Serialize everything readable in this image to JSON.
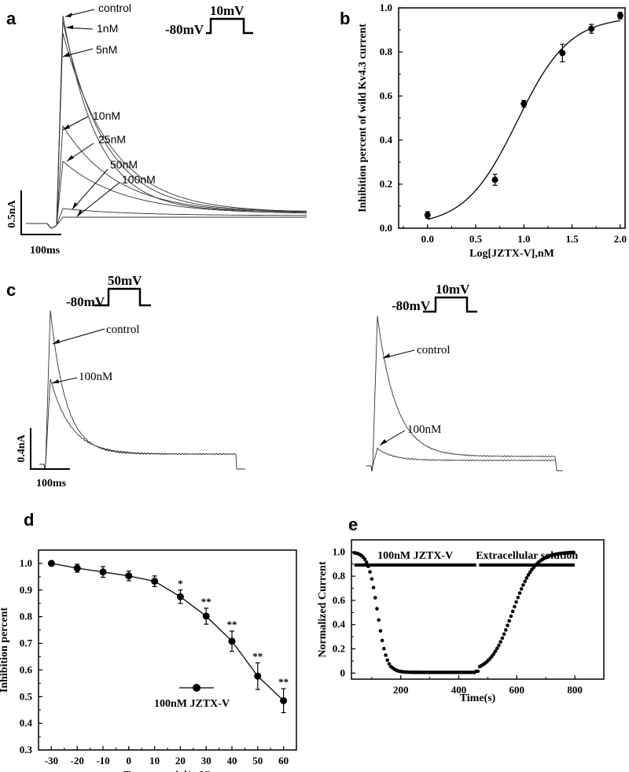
{
  "panels": {
    "a": {
      "label": "a",
      "protocol": {
        "hold": "-80mV",
        "step": "10mV"
      },
      "scale": {
        "current": "0.5nA",
        "time": "100ms"
      },
      "traces": [
        "control",
        "1nM",
        "5nM",
        "10nM",
        "25nM",
        "50nM",
        "100nM"
      ]
    },
    "c": {
      "label": "c",
      "left": {
        "protocol": {
          "hold": "-80mV",
          "step": "50mV"
        },
        "labels": [
          "control",
          "100nM"
        ]
      },
      "right": {
        "protocol": {
          "hold": "-80mV",
          "step": "10mV"
        },
        "labels": [
          "control",
          "100nM"
        ]
      },
      "scale": {
        "current": "0.4nA",
        "time": "100ms"
      }
    }
  },
  "chart_data": [
    {
      "panel": "b",
      "type": "scatter",
      "xlabel": "Log[JZTX-V],nM",
      "ylabel": "Inhibition percent of wild Kv4.3 current",
      "xlim": [
        -0.3,
        2.05
      ],
      "ylim": [
        0.0,
        1.0
      ],
      "xticks": [
        "0.0",
        "0.5",
        "1.0",
        "1.5",
        "2.0"
      ],
      "yticks": [
        "0.0",
        "0.2",
        "0.4",
        "0.6",
        "0.8",
        "1.0"
      ],
      "points": [
        {
          "x": 0.0,
          "y": 0.06,
          "err": 0.015
        },
        {
          "x": 0.7,
          "y": 0.22,
          "err": 0.025
        },
        {
          "x": 1.0,
          "y": 0.565,
          "err": 0.015
        },
        {
          "x": 1.4,
          "y": 0.795,
          "err": 0.04
        },
        {
          "x": 1.7,
          "y": 0.905,
          "err": 0.02
        },
        {
          "x": 2.0,
          "y": 0.965,
          "err": 0.015
        }
      ],
      "fit": "sigmoid"
    },
    {
      "panel": "d",
      "type": "line",
      "xlabel": "Test potential(mV)",
      "ylabel": "Inhibition percent",
      "xlim": [
        -35,
        65
      ],
      "ylim": [
        0.3,
        1.05
      ],
      "xticks": [
        "-30",
        "-20",
        "-10",
        "0",
        "10",
        "20",
        "30",
        "40",
        "50",
        "60"
      ],
      "yticks": [
        "0.3",
        "0.4",
        "0.5",
        "0.6",
        "0.7",
        "0.8",
        "0.9",
        "1.0"
      ],
      "legend": "100nM JZTX-V",
      "series": [
        {
          "name": "100nM JZTX-V",
          "x": [
            -30,
            -20,
            -10,
            0,
            10,
            20,
            30,
            40,
            50,
            60
          ],
          "y": [
            1.0,
            0.982,
            0.968,
            0.953,
            0.933,
            0.875,
            0.802,
            0.708,
            0.577,
            0.485
          ],
          "err": [
            0.005,
            0.015,
            0.02,
            0.018,
            0.02,
            0.025,
            0.03,
            0.038,
            0.05,
            0.045
          ],
          "significance": [
            "",
            "",
            "",
            "",
            "",
            "*",
            "**",
            "**",
            "**",
            "**"
          ]
        }
      ]
    },
    {
      "panel": "e",
      "type": "scatter",
      "xlabel": "Time(s)",
      "ylabel": "Normalized Current",
      "xlim": [
        30,
        900
      ],
      "ylim": [
        -0.05,
        1.1
      ],
      "xticks": [
        "200",
        "400",
        "600",
        "800"
      ],
      "yticks": [
        "0",
        "0.2",
        "0.4",
        "0.6",
        "0.8",
        "1.0"
      ],
      "bars": [
        {
          "label": "100nM JZTX-V",
          "from": 40,
          "to": 460
        },
        {
          "label": "Extracellular solution",
          "from": 470,
          "to": 800
        }
      ]
    }
  ]
}
